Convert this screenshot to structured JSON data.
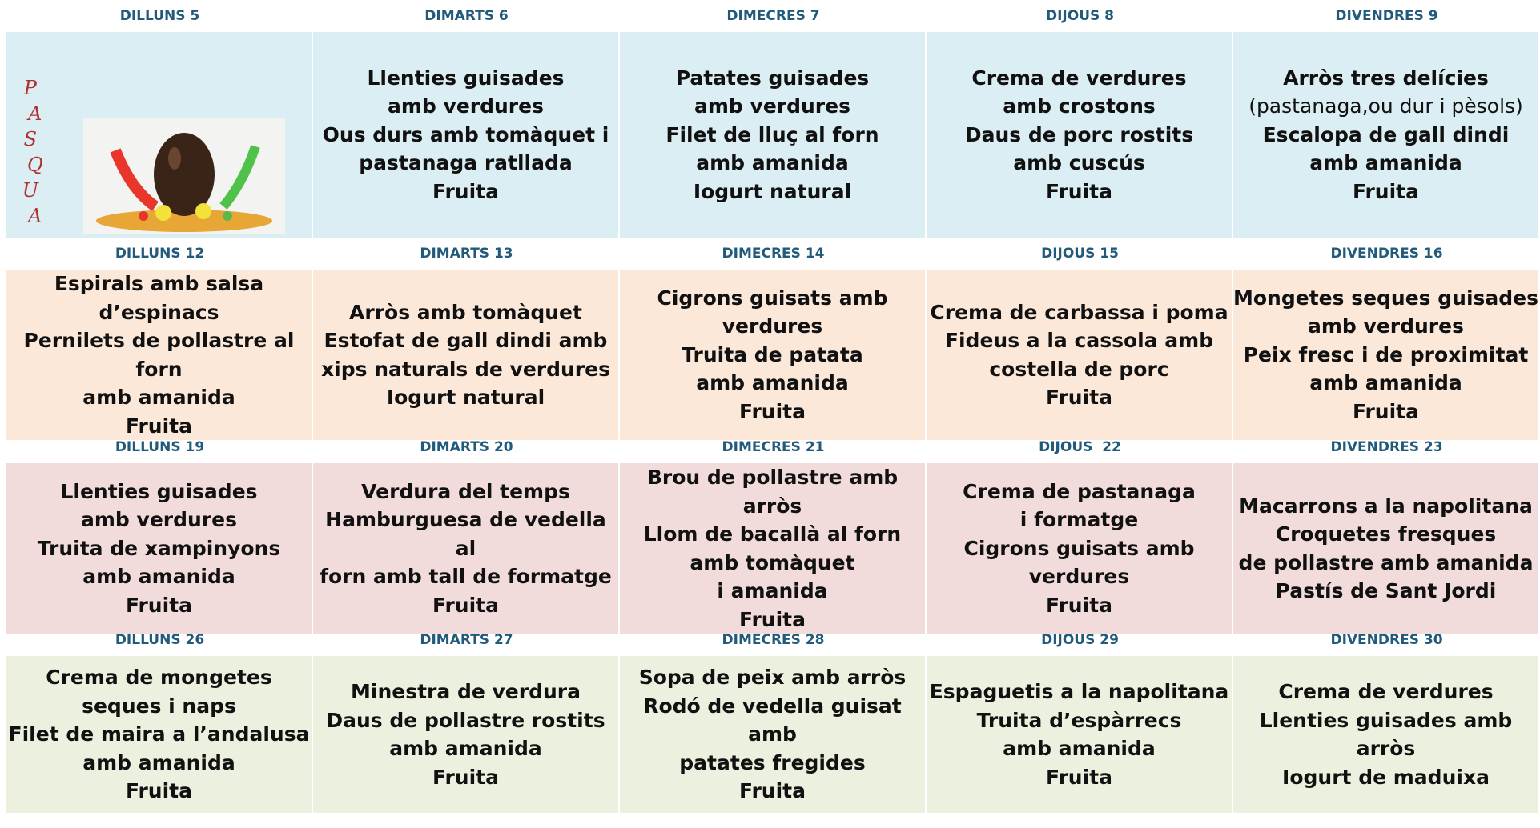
{
  "weeks": [
    {
      "color": "#dbeef4",
      "days": [
        {
          "label": "DILLUNS 5",
          "letters": [
            "P",
            "A",
            "S",
            "Q",
            "U",
            "A"
          ]
        },
        {
          "label": "DIMARTS 6",
          "lines": [
            "Llenties guisades",
            "amb verdures",
            "Ous durs amb tomàquet i",
            "pastanaga ratllada",
            "Fruita"
          ]
        },
        {
          "label": "DIMECRES 7",
          "lines": [
            "Patates guisades",
            "amb verdures",
            "Filet de lluç al forn",
            "amb amanida",
            "Iogurt natural"
          ]
        },
        {
          "label": "DIJOUS 8",
          "lines": [
            "Crema de verdures",
            "amb crostons",
            "Daus de porc rostits",
            "amb cuscús",
            "Fruita"
          ]
        },
        {
          "label": "DIVENDRES 9",
          "lines": [
            "Arròs tres delícies",
            "(pastanaga,ou dur i pèsols)",
            "Escalopa de gall dindi",
            "amb amanida",
            "Fruita"
          ]
        }
      ]
    },
    {
      "color": "#fce8d9",
      "days": [
        {
          "label": "DILLUNS 12",
          "lines": [
            "Espirals amb salsa d’espinacs",
            "Pernilets de pollastre al forn",
            "amb amanida",
            "Fruita"
          ]
        },
        {
          "label": "DIMARTS 13",
          "lines": [
            "Arròs amb tomàquet",
            "Estofat de gall dindi amb",
            "xips naturals de verdures",
            "Iogurt natural"
          ]
        },
        {
          "label": "DIMECRES 14",
          "lines": [
            "Cigrons guisats amb verdures",
            "Truita de patata",
            "amb amanida",
            "Fruita"
          ]
        },
        {
          "label": "DIJOUS 15",
          "lines": [
            "Crema de carbassa i poma",
            "Fideus a la cassola amb",
            "costella de porc",
            "Fruita"
          ]
        },
        {
          "label": "DIVENDRES 16",
          "lines": [
            "Mongetes seques guisades",
            "amb verdures",
            "Peix fresc i de proximitat",
            "amb amanida",
            "Fruita"
          ]
        }
      ]
    },
    {
      "color": "#f2dcdb",
      "days": [
        {
          "label": "DILLUNS 19",
          "lines": [
            "Llenties guisades",
            "amb verdures",
            "Truita de xampinyons",
            "amb amanida",
            "Fruita"
          ]
        },
        {
          "label": "DIMARTS 20",
          "lines": [
            "Verdura del temps",
            "Hamburguesa de vedella al",
            "forn amb tall de formatge",
            "Fruita"
          ]
        },
        {
          "label": "DIMECRES 21",
          "lines": [
            "Brou de pollastre amb arròs",
            "Llom de bacallà al forn",
            "amb tomàquet",
            "i amanida",
            "Fruita"
          ]
        },
        {
          "label": "DIJOUS  22",
          "lines": [
            "Crema de pastanaga",
            "i formatge",
            "Cigrons guisats amb verdures",
            "Fruita"
          ]
        },
        {
          "label": "DIVENDRES 23",
          "lines": [
            "Macarrons a la napolitana",
            "Croquetes fresques",
            "de pollastre amb amanida",
            "Pastís de Sant Jordi"
          ]
        }
      ]
    },
    {
      "color": "#ebf1de",
      "days": [
        {
          "label": "DILLUNS 26",
          "lines": [
            "Crema de mongetes",
            "seques i naps",
            "Filet de maira a l’andalusa",
            "amb amanida",
            "Fruita"
          ]
        },
        {
          "label": "DIMARTS 27",
          "lines": [
            "Minestra de verdura",
            "Daus de pollastre rostits",
            "amb amanida",
            "Fruita"
          ]
        },
        {
          "label": "DIMECRES 28",
          "lines": [
            "Sopa de peix amb arròs",
            "Rodó de vedella guisat amb",
            "patates fregides",
            "Fruita"
          ]
        },
        {
          "label": "DIJOUS 29",
          "lines": [
            "Espaguetis a la napolitana",
            "Truita d’espàrrecs",
            "amb amanida",
            "Fruita"
          ]
        },
        {
          "label": "DIVENDRES 30",
          "lines": [
            "Crema de verdures",
            "Llenties guisades amb arròs",
            "Iogurt de maduixa"
          ]
        }
      ]
    }
  ]
}
